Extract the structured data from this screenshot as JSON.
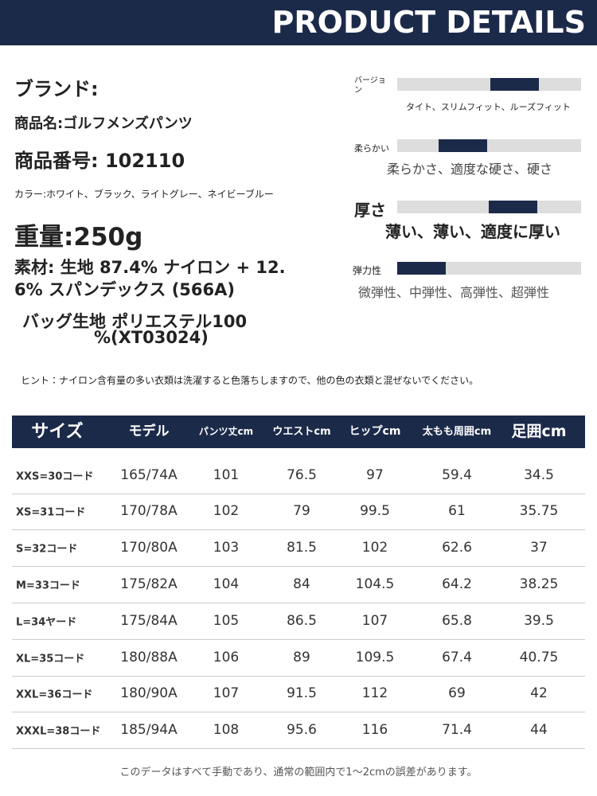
{
  "header": {
    "title": "PRODUCT DETAILS"
  },
  "info": {
    "brand": "ブランド:",
    "product_name": "商品名:ゴルフメンズパンツ",
    "product_number": "商品番号: 102110",
    "color": "カラー:ホワイト、ブラック、ライトグレー、ネイビーブルー",
    "weight": "重量:250g",
    "material": [
      "素材: 生地 87.4% ナイロン + 12.",
      "6% スパンデックス (566A)"
    ],
    "bag_material": [
      "バッグ生地 ポリエステル100",
      "%(XT03024)"
    ]
  },
  "attributes": [
    {
      "label": "バージョン",
      "options": "タイト、スリムフィット、ルーズフィット"
    },
    {
      "label": "柔らかい",
      "options": "柔らかさ、適度な硬さ、硬さ"
    },
    {
      "label": "厚さ",
      "options": "薄い、薄い、適度に厚い"
    },
    {
      "label": "弾力性",
      "options": "微弾性、中弾性、高弾性、超弾性"
    }
  ],
  "hint": "ヒント：ナイロン含有量の多い衣類は洗濯すると色落ちしますので、他の色の衣類と混ぜないでください。",
  "table": {
    "columns": [
      "サイズ",
      "モデル",
      "パンツ丈cm",
      "ウエストcm",
      "ヒップcm",
      "太もも周囲cm",
      "足囲cm"
    ],
    "rows": [
      [
        "XXS=30コード",
        "165/74A",
        101,
        76.5,
        97,
        59.4,
        34.5
      ],
      [
        "XS=31コード",
        "170/78A",
        102,
        79,
        99.5,
        61,
        35.75
      ],
      [
        "S=32コード",
        "170/80A",
        103,
        81.5,
        102,
        62.6,
        37
      ],
      [
        "M=33コード",
        "175/82A",
        104,
        84,
        104.5,
        64.2,
        38.25
      ],
      [
        "L=34ヤード",
        "175/84A",
        105,
        86.5,
        107,
        65.8,
        39.5
      ],
      [
        "XL=35コード",
        "180/88A",
        106,
        89,
        109.5,
        67.4,
        40.75
      ],
      [
        "XXL=36コード",
        "180/90A",
        107,
        91.5,
        112,
        69,
        42
      ],
      [
        "XXXL=38コード",
        "185/94A",
        108,
        95.6,
        116,
        71.4,
        44
      ]
    ]
  },
  "footer": "このデータはすべて手動であり、通常の範囲内で1～2cmの誤差があります。"
}
